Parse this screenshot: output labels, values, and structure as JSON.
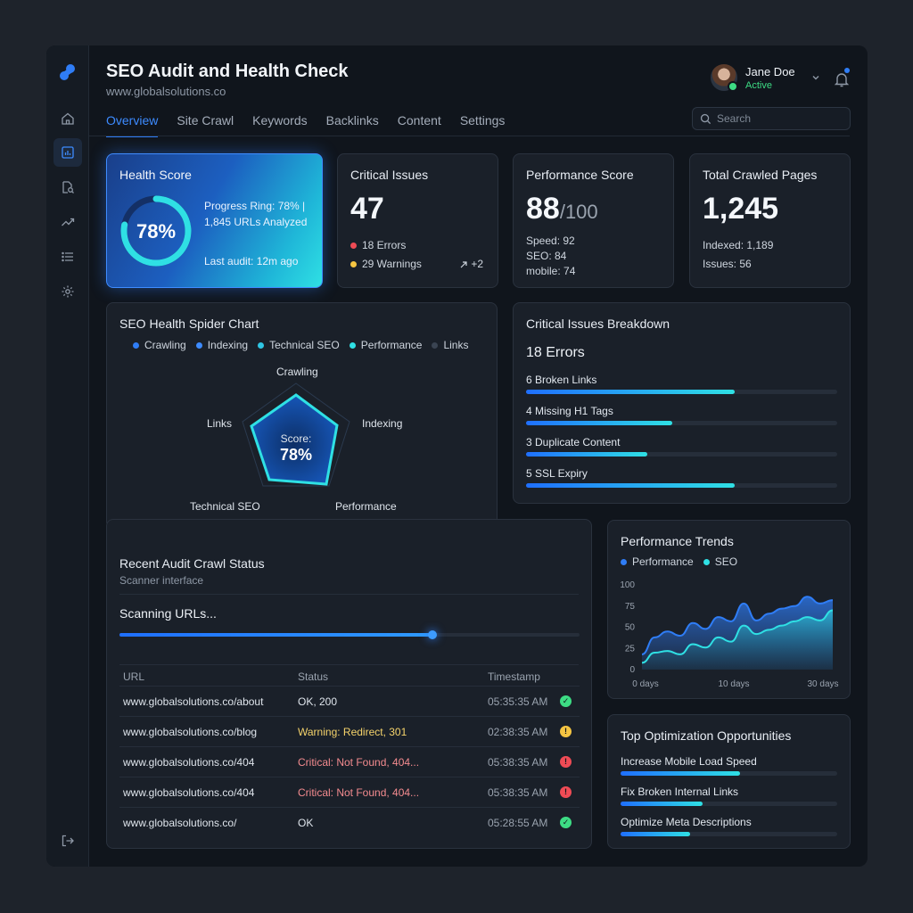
{
  "app": {
    "title": "SEO Audit and Health Check",
    "url": "www.globalsolutions.co"
  },
  "tabs": [
    {
      "label": "Overview",
      "active": true
    },
    {
      "label": "Site Crawl"
    },
    {
      "label": "Keywords"
    },
    {
      "label": "Backlinks"
    },
    {
      "label": "Content"
    },
    {
      "label": "Settings"
    }
  ],
  "sidebar_icons": [
    "home-icon",
    "dashboard-icon",
    "document-search-icon",
    "trend-icon",
    "list-icon",
    "settings-icon",
    "logout-icon"
  ],
  "user": {
    "name": "Jane Doe",
    "status": "Active"
  },
  "search": {
    "placeholder": "Search"
  },
  "health": {
    "title": "Health Score",
    "value": "78%",
    "progress": 0.78,
    "line1": "Progress Ring: 78% |",
    "line2": "1,845 URLs Analyzed",
    "last_audit": "Last audit: 12m ago"
  },
  "critical": {
    "title": "Critical Issues",
    "value": "47",
    "errors": "18 Errors",
    "warnings": "29 Warnings",
    "delta": "+2"
  },
  "performance": {
    "title": "Performance Score",
    "value": "88",
    "suffix": "/100",
    "speed": "Speed: 92",
    "seo": "SEO: 84",
    "mobile": "mobile: 74"
  },
  "crawled": {
    "title": "Total Crawled Pages",
    "value": "1,245",
    "indexed": "Indexed: 1,189",
    "issues": "Issues: 56"
  },
  "spider": {
    "title": "SEO Health Spider Chart",
    "legend": [
      "Crawling",
      "Indexing",
      "Technical SEO",
      "Performance",
      "Links"
    ],
    "axes": [
      "Crawling",
      "Indexing",
      "Performance",
      "Technical SEO",
      "Links"
    ],
    "center_label": "Score:",
    "center_value": "78%"
  },
  "breakdown": {
    "title": "Critical Issues Breakdown",
    "subtitle": "18 Errors",
    "items": [
      {
        "label": "6 Broken Links",
        "fraction": 0.67
      },
      {
        "label": "4 Missing H1 Tags",
        "fraction": 0.47
      },
      {
        "label": "3 Duplicate Content",
        "fraction": 0.39
      },
      {
        "label": "5 SSL Expiry",
        "fraction": 0.67
      }
    ]
  },
  "crawl": {
    "title": "Recent Audit Crawl Status",
    "subtitle": "Scanner interface",
    "scanning": "Scanning URLs...",
    "progress": 0.68,
    "headers": [
      "URL",
      "Status",
      "Timestamp"
    ],
    "rows": [
      {
        "url": "www.globalsolutions.co/about",
        "status": "OK, 200",
        "time": "05:35:35 AM",
        "level": "ok"
      },
      {
        "url": "www.globalsolutions.co/blog",
        "status": "Warning: Redirect, 301",
        "time": "02:38:35 AM",
        "level": "warn"
      },
      {
        "url": "www.globalsolutions.co/404",
        "status": "Critical: Not Found, 404...",
        "time": "05:38:35 AM",
        "level": "crit"
      },
      {
        "url": "www.globalsolutions.co/404",
        "status": "Critical: Not Found, 404...",
        "time": "05:38:35 AM",
        "level": "crit"
      },
      {
        "url": "www.globalsolutions.co/",
        "status": "OK",
        "time": "05:28:55 AM",
        "level": "ok"
      }
    ]
  },
  "trends": {
    "title": "Performance Trends"
  },
  "chart_data": {
    "type": "area",
    "x": [
      0,
      2,
      4,
      6,
      8,
      10,
      12,
      14,
      16,
      18,
      20,
      22,
      24,
      26,
      28,
      30
    ],
    "series": [
      {
        "name": "Performance",
        "values": [
          18,
          38,
          45,
          40,
          55,
          48,
          62,
          57,
          78,
          58,
          66,
          72,
          75,
          86,
          78,
          82
        ]
      },
      {
        "name": "SEO",
        "values": [
          8,
          20,
          22,
          18,
          30,
          26,
          38,
          33,
          52,
          42,
          47,
          52,
          57,
          62,
          58,
          70
        ]
      }
    ],
    "y_ticks": [
      "100",
      "75",
      "50",
      "25",
      "0"
    ],
    "x_ticks": [
      "0 days",
      "10 days",
      "30 days"
    ],
    "ylim": [
      0,
      100
    ],
    "legend": "top-left",
    "colors": {
      "Performance": "#2f7df6",
      "SEO": "#2fe0e4"
    }
  },
  "opportunities": {
    "title": "Top Optimization Opportunities",
    "items": [
      {
        "label": "Increase Mobile Load Speed",
        "fraction": 0.55
      },
      {
        "label": "Fix Broken Internal Links",
        "fraction": 0.38
      },
      {
        "label": "Optimize Meta Descriptions",
        "fraction": 0.32
      }
    ]
  },
  "colors": {
    "accent": "#2f7df6",
    "cyan": "#2fe0e4",
    "ok": "#3ddc84",
    "warn": "#f5c542",
    "crit": "#ef4b55"
  }
}
